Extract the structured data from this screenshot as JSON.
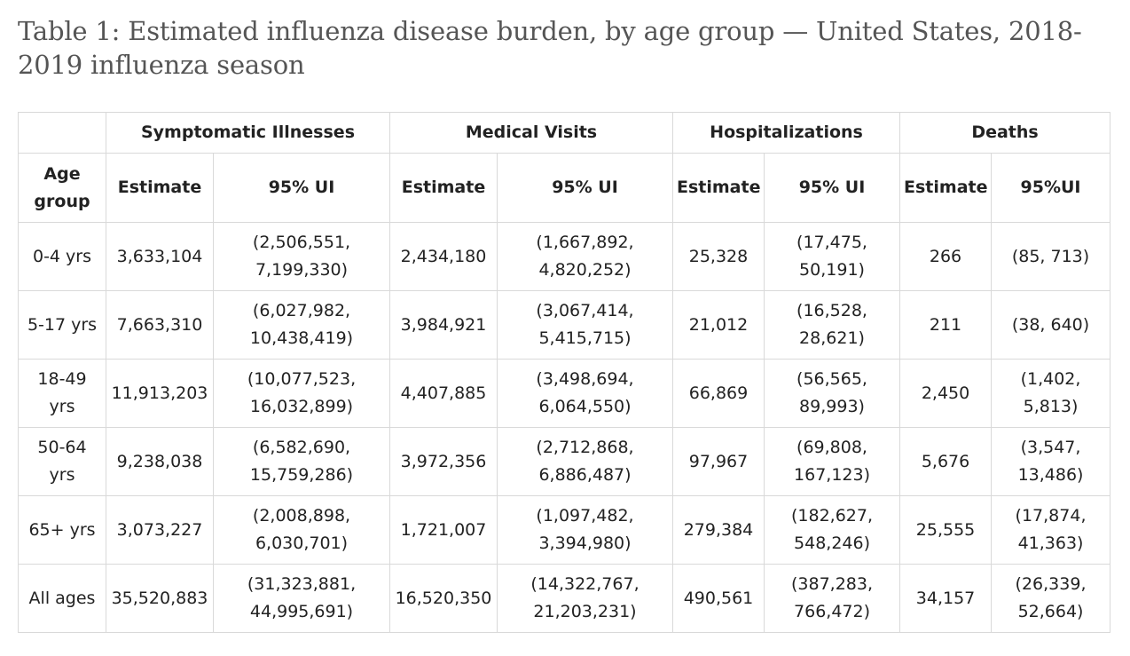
{
  "title": "Table 1: Estimated influenza disease burden, by age group — United States, 2018-2019 influenza season",
  "table": {
    "group_headers": [
      "Symptomatic Illnesses",
      "Medical Visits",
      "Hospitalizations",
      "Deaths"
    ],
    "age_header": "Age group",
    "sub_headers": [
      "Estimate",
      "95% UI",
      "Estimate",
      "95% UI",
      "Estimate",
      "95% UI",
      "Estimate",
      "95%UI"
    ],
    "rows": [
      {
        "age": "0-4 yrs",
        "cells": [
          "3,633,104",
          "(2,506,551, 7,199,330)",
          "2,434,180",
          "(1,667,892, 4,820,252)",
          "25,328",
          "(17,475, 50,191)",
          "266",
          "(85, 713)"
        ]
      },
      {
        "age": "5-17 yrs",
        "cells": [
          "7,663,310",
          "(6,027,982, 10,438,419)",
          "3,984,921",
          "(3,067,414, 5,415,715)",
          "21,012",
          "(16,528, 28,621)",
          "211",
          "(38, 640)"
        ]
      },
      {
        "age": "18-49 yrs",
        "cells": [
          "11,913,203",
          "(10,077,523, 16,032,899)",
          "4,407,885",
          "(3,498,694, 6,064,550)",
          "66,869",
          "(56,565, 89,993)",
          "2,450",
          "(1,402, 5,813)"
        ]
      },
      {
        "age": "50-64 yrs",
        "cells": [
          "9,238,038",
          "(6,582,690, 15,759,286)",
          "3,972,356",
          "(2,712,868, 6,886,487)",
          "97,967",
          "(69,808, 167,123)",
          "5,676",
          "(3,547, 13,486)"
        ]
      },
      {
        "age": "65+ yrs",
        "cells": [
          "3,073,227",
          "(2,008,898, 6,030,701)",
          "1,721,007",
          "(1,097,482, 3,394,980)",
          "279,384",
          "(182,627, 548,246)",
          "25,555",
          "(17,874, 41,363)"
        ]
      },
      {
        "age": "All ages",
        "cells": [
          "35,520,883",
          "(31,323,881, 44,995,691)",
          "16,520,350",
          "(14,322,767, 21,203,231)",
          "490,561",
          "(387,283, 766,472)",
          "34,157",
          "(26,339, 52,664)"
        ]
      }
    ]
  }
}
